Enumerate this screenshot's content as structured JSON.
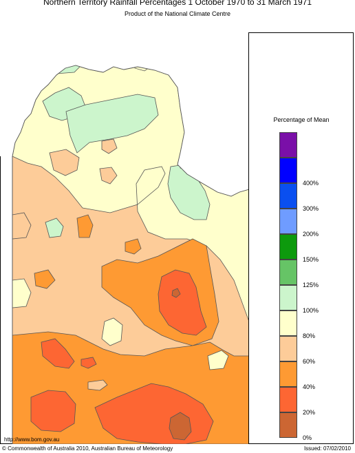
{
  "title": "Northern Territory Rainfall Percentages 1 October 1970 to 31 March 1971",
  "subtitle": "Product of the National Climate Centre",
  "legend": {
    "title": "Percentage of Mean",
    "classes": [
      {
        "label": "",
        "color": "#7a0fa8"
      },
      {
        "label": "400%",
        "color": "#0000ff"
      },
      {
        "label": "300%",
        "color": "#0a4ff0"
      },
      {
        "label": "200%",
        "color": "#6f9cff"
      },
      {
        "label": "150%",
        "color": "#0d9a0d"
      },
      {
        "label": "125%",
        "color": "#66c466"
      },
      {
        "label": "100%",
        "color": "#ccf5cc"
      },
      {
        "label": "80%",
        "color": "#ffffcc"
      },
      {
        "label": "60%",
        "color": "#fdcc99"
      },
      {
        "label": "40%",
        "color": "#fe9a33"
      },
      {
        "label": "20%",
        "color": "#fd6633"
      },
      {
        "label": "0%",
        "color": "#cc6633"
      }
    ]
  },
  "footer": {
    "url": "http://www.bom.gov.au",
    "copyright": "© Commonwealth of Australia 2010, Australian Bureau of Meteorology",
    "issued": "Issued: 07/02/2010"
  }
}
